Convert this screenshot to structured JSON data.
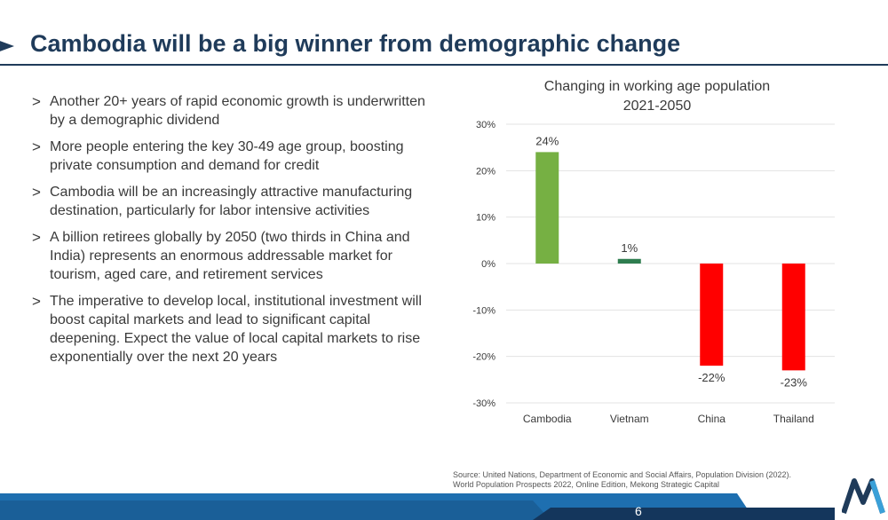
{
  "header": {
    "title": "Cambodia will be a big winner from demographic change"
  },
  "bullets": [
    "Another 20+ years of rapid economic growth is underwritten by a demographic dividend",
    "More people entering the key 30-49 age group, boosting private consumption and demand for credit",
    "Cambodia will be an increasingly attractive manufacturing destination, particularly for labor intensive activities",
    "A billion retirees globally by 2050 (two thirds in China and India) represents an enormous addressable market for tourism, aged care, and retirement services",
    "The imperative to develop local, institutional investment will boost capital markets and lead to significant capital deepening. Expect the value of local capital markets to rise exponentially over the next 20 years"
  ],
  "bullet_marker": ">",
  "chart_data": {
    "type": "bar",
    "title": "Changing in working age population",
    "subtitle": "2021-2050",
    "categories": [
      "Cambodia",
      "Vietnam",
      "China",
      "Thailand"
    ],
    "values": [
      24,
      1,
      -22,
      -23
    ],
    "value_labels": [
      "24%",
      "1%",
      "-22%",
      "-23%"
    ],
    "bar_colors": [
      "#76b043",
      "#2e7d4f",
      "#ff0000",
      "#ff0000"
    ],
    "ylim": [
      -30,
      30
    ],
    "yticks": [
      30,
      20,
      10,
      0,
      -10,
      -20,
      -30
    ],
    "ytick_labels": [
      "30%",
      "20%",
      "10%",
      "0%",
      "-10%",
      "-20%",
      "-30%"
    ],
    "grid": true
  },
  "source": "Source: United Nations, Department of Economic and Social Affairs, Population Division (2022). World Population Prospects 2022, Online Edition, Mekong Strategic Capital",
  "footer": {
    "page_number": "6"
  },
  "colors": {
    "brand_navy": "#1f3b5a",
    "band_blue": "#1e6fb0",
    "band_dark": "#14365c"
  }
}
